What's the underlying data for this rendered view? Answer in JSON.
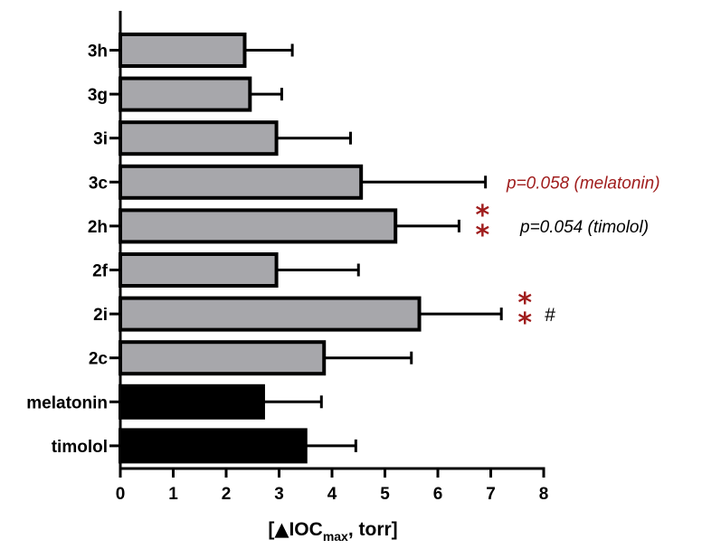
{
  "chart_data": {
    "type": "bar",
    "orientation": "horizontal",
    "categories": [
      "3h",
      "3g",
      "3i",
      "3c",
      "2h",
      "2f",
      "2i",
      "2c",
      "melatonin",
      "timolol"
    ],
    "values": [
      2.35,
      2.45,
      2.95,
      4.55,
      5.2,
      2.95,
      5.65,
      3.85,
      2.7,
      3.5
    ],
    "errors": [
      0.9,
      0.6,
      1.4,
      2.35,
      1.2,
      1.55,
      1.55,
      1.65,
      1.1,
      0.95
    ],
    "bar_colors": [
      "#a7a7ab",
      "#a7a7ab",
      "#a7a7ab",
      "#a7a7ab",
      "#a7a7ab",
      "#a7a7ab",
      "#a7a7ab",
      "#a7a7ab",
      "#000000",
      "#000000"
    ],
    "xlim": [
      0,
      8
    ],
    "xticks": [
      "0",
      "1",
      "2",
      "3",
      "4",
      "5",
      "6",
      "7",
      "8"
    ],
    "xlabel": {
      "open": "[",
      "delta": "▲",
      "main": "IOC",
      "sub": "max",
      "rest": ", torr]"
    },
    "annotations": [
      {
        "category": "3c",
        "text": "p=0.058 (melatonin)",
        "color": "#a01e1e"
      },
      {
        "category": "2h",
        "text": "p=0.054 (timolol)",
        "color": "#000000"
      }
    ],
    "significance": [
      {
        "category": "2h",
        "stars": [
          "*",
          "*"
        ],
        "color": "#a01e1e"
      },
      {
        "category": "2i",
        "stars": [
          "*",
          "*"
        ],
        "hash": "#",
        "color": "#a01e1e"
      }
    ]
  }
}
